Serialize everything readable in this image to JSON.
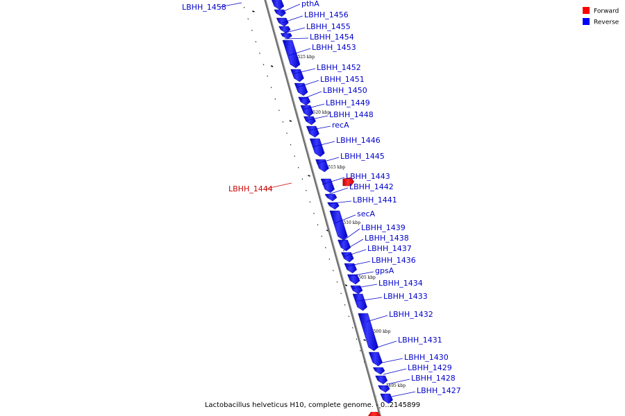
{
  "legend": [
    {
      "label": "Forward",
      "color": "#ff0000"
    },
    {
      "label": "Reverse",
      "color": "#0000ff"
    }
  ],
  "caption": "Lactobacillus helveticus H10, complete genome. - 0..2145899",
  "scale_ticks": [
    "1525 kbp",
    "1520 kbp",
    "1515 kbp",
    "1510 kbp",
    "1505 kbp",
    "1500 kbp",
    "1495 kbp"
  ],
  "genes": [
    {
      "name": "LBHH_1458",
      "strand": "reverse"
    },
    {
      "name": "pthA",
      "strand": "reverse"
    },
    {
      "name": "LBHH_1456",
      "strand": "reverse"
    },
    {
      "name": "LBHH_1455",
      "strand": "reverse"
    },
    {
      "name": "LBHH_1454",
      "strand": "reverse"
    },
    {
      "name": "LBHH_1453",
      "strand": "reverse"
    },
    {
      "name": "LBHH_1452",
      "strand": "reverse"
    },
    {
      "name": "LBHH_1451",
      "strand": "reverse"
    },
    {
      "name": "LBHH_1450",
      "strand": "reverse"
    },
    {
      "name": "LBHH_1449",
      "strand": "reverse"
    },
    {
      "name": "LBHH_1448",
      "strand": "reverse"
    },
    {
      "name": "recA",
      "strand": "reverse"
    },
    {
      "name": "LBHH_1446",
      "strand": "reverse"
    },
    {
      "name": "LBHH_1445",
      "strand": "reverse"
    },
    {
      "name": "LBHH_1444",
      "strand": "forward"
    },
    {
      "name": "LBHH_1443",
      "strand": "reverse"
    },
    {
      "name": "LBHH_1442",
      "strand": "reverse"
    },
    {
      "name": "LBHH_1441",
      "strand": "reverse"
    },
    {
      "name": "secA",
      "strand": "reverse"
    },
    {
      "name": "LBHH_1439",
      "strand": "reverse"
    },
    {
      "name": "LBHH_1438",
      "strand": "reverse"
    },
    {
      "name": "LBHH_1437",
      "strand": "reverse"
    },
    {
      "name": "LBHH_1436",
      "strand": "reverse"
    },
    {
      "name": "gpsA",
      "strand": "reverse"
    },
    {
      "name": "LBHH_1434",
      "strand": "reverse"
    },
    {
      "name": "LBHH_1433",
      "strand": "reverse"
    },
    {
      "name": "LBHH_1432",
      "strand": "reverse"
    },
    {
      "name": "LBHH_1431",
      "strand": "reverse"
    },
    {
      "name": "LBHH_1430",
      "strand": "reverse"
    },
    {
      "name": "LBHH_1429",
      "strand": "reverse"
    },
    {
      "name": "LBHH_1428",
      "strand": "reverse"
    },
    {
      "name": "LBHH_1427",
      "strand": "reverse"
    }
  ]
}
